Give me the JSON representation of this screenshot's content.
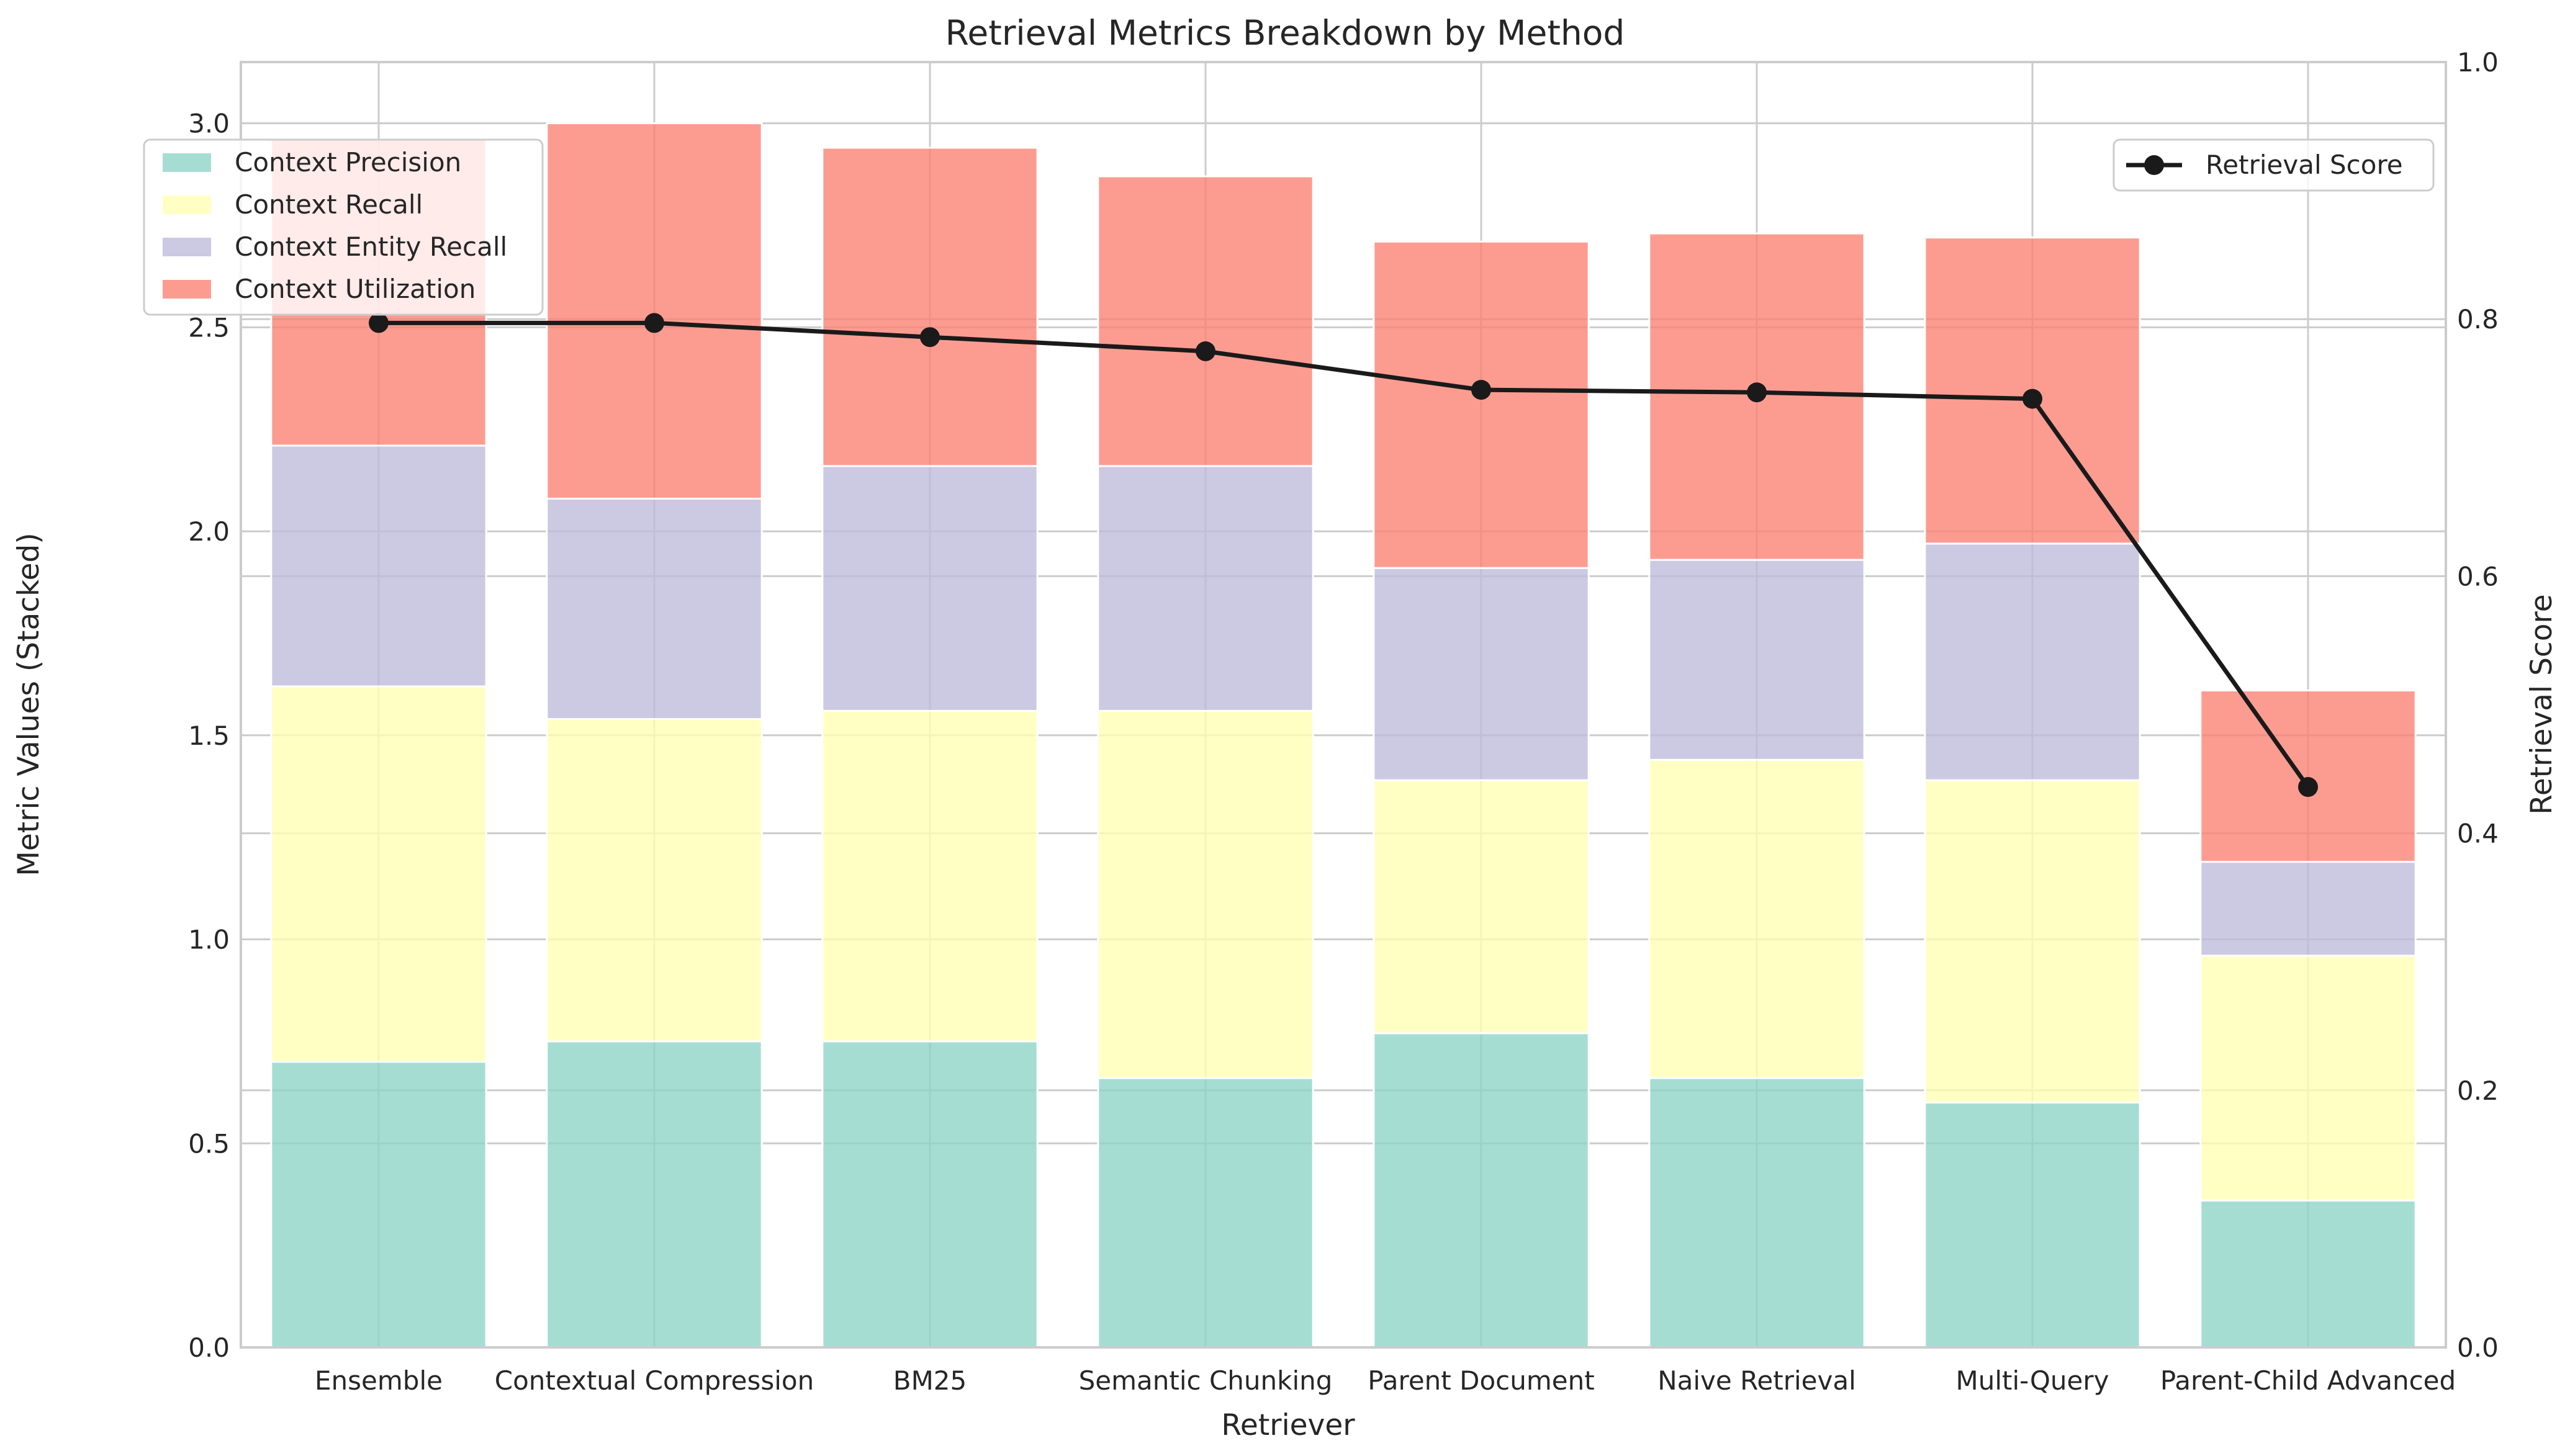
{
  "chart_data": {
    "type": "bar",
    "stacked": true,
    "title": "Retrieval Metrics Breakdown by Method",
    "xlabel": "Retriever",
    "ylabel": "Metric Values (Stacked)",
    "y2label": "Retrieval Score",
    "ylim": [
      0,
      3.15
    ],
    "y2lim": [
      0,
      1.0
    ],
    "yticks": [
      "0.0",
      "0.5",
      "1.0",
      "1.5",
      "2.0",
      "2.5",
      "3.0"
    ],
    "y2ticks": [
      "0.0",
      "0.2",
      "0.4",
      "0.6",
      "0.8",
      "1.0"
    ],
    "grid": true,
    "categories": [
      "Ensemble",
      "Contextual Compression",
      "BM25",
      "Semantic Chunking",
      "Parent Document",
      "Naive Retrieval",
      "Multi-Query",
      "Parent-Child Advanced"
    ],
    "series": [
      {
        "name": "Context Precision",
        "color": "#8dd3c7",
        "values": [
          0.7,
          0.75,
          0.75,
          0.66,
          0.77,
          0.66,
          0.6,
          0.36
        ]
      },
      {
        "name": "Context Recall",
        "color": "#ffffb3",
        "values": [
          0.92,
          0.79,
          0.81,
          0.9,
          0.62,
          0.78,
          0.79,
          0.6
        ]
      },
      {
        "name": "Context Entity Recall",
        "color": "#bebada",
        "values": [
          0.59,
          0.54,
          0.6,
          0.6,
          0.52,
          0.49,
          0.58,
          0.23
        ]
      },
      {
        "name": "Context Utilization",
        "color": "#fb8072",
        "values": [
          0.75,
          0.92,
          0.78,
          0.71,
          0.8,
          0.8,
          0.75,
          0.42
        ]
      }
    ],
    "line_series": {
      "name": "Retrieval Score",
      "color": "#1a1a1a",
      "axis": "right",
      "values": [
        0.797,
        0.797,
        0.786,
        0.775,
        0.745,
        0.743,
        0.738,
        0.436
      ]
    },
    "legend_left_position": "upper-left",
    "legend_right_position": "upper-right"
  }
}
